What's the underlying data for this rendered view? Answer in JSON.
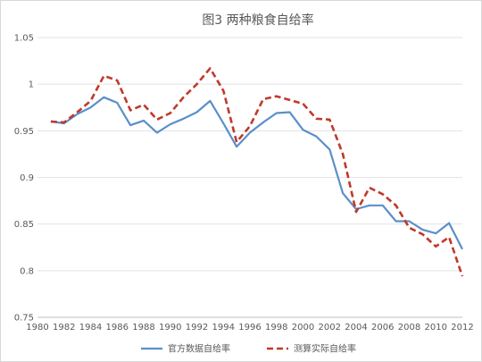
{
  "chart_data": {
    "type": "line",
    "title": "图3 两种粮食自给率",
    "xlabel": "",
    "ylabel": "",
    "xlim": [
      1980,
      2012
    ],
    "ylim": [
      0.75,
      1.05
    ],
    "x_ticks": [
      1980,
      1982,
      1984,
      1986,
      1988,
      1990,
      1992,
      1994,
      1996,
      1998,
      2000,
      2002,
      2004,
      2006,
      2008,
      2010,
      2012
    ],
    "y_ticks": [
      0.75,
      0.8,
      0.85,
      0.9,
      0.95,
      1,
      1.05
    ],
    "y_tick_labels": [
      "0.75",
      "0.8",
      "0.85",
      "0.9",
      "0.95",
      "1",
      "1.05"
    ],
    "grid": "horizontal",
    "legend_position": "bottom",
    "x": [
      1981,
      1982,
      1983,
      1984,
      1985,
      1986,
      1987,
      1988,
      1989,
      1990,
      1991,
      1992,
      1993,
      1994,
      1995,
      1996,
      1997,
      1998,
      1999,
      2000,
      2001,
      2002,
      2003,
      2004,
      2005,
      2006,
      2007,
      2008,
      2009,
      2010,
      2011,
      2012
    ],
    "series": [
      {
        "name": "官方数据自给率",
        "color": "#5b8fc9",
        "dash": "solid",
        "values": [
          0.96,
          0.958,
          0.968,
          0.975,
          0.986,
          0.98,
          0.956,
          0.961,
          0.948,
          0.957,
          0.963,
          0.97,
          0.982,
          0.958,
          0.933,
          0.948,
          0.959,
          0.969,
          0.97,
          0.951,
          0.944,
          0.93,
          0.883,
          0.866,
          0.87,
          0.87,
          0.853,
          0.853,
          0.844,
          0.84,
          0.851,
          0.823
        ]
      },
      {
        "name": "测算实际自给率",
        "color": "#c0392b",
        "dash": "dashed",
        "values": [
          0.96,
          0.959,
          0.97,
          0.982,
          1.009,
          1.004,
          0.972,
          0.978,
          0.962,
          0.969,
          0.986,
          1.0,
          1.017,
          0.993,
          0.938,
          0.955,
          0.984,
          0.987,
          0.983,
          0.979,
          0.963,
          0.962,
          0.925,
          0.863,
          0.889,
          0.882,
          0.87,
          0.846,
          0.839,
          0.826,
          0.836,
          0.794
        ]
      }
    ]
  }
}
